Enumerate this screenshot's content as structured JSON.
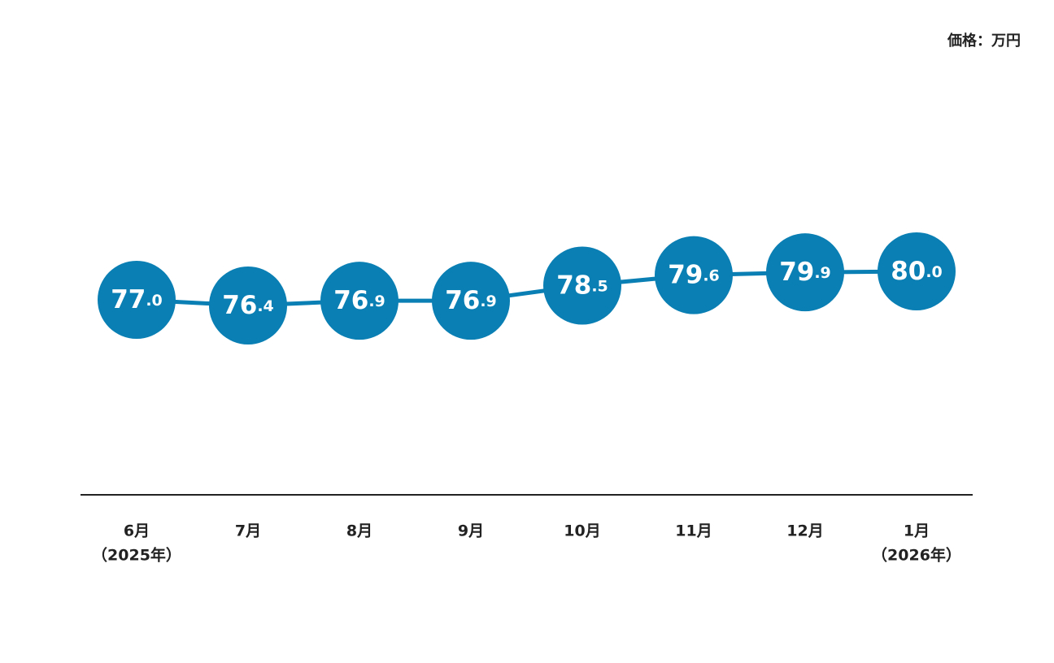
{
  "chart_data": {
    "type": "line",
    "unit_label": "価格：万円",
    "categories": [
      "6月",
      "7月",
      "8月",
      "9月",
      "10月",
      "11月",
      "12月",
      "1月"
    ],
    "year_labels": [
      "（2025年）",
      null,
      null,
      null,
      null,
      null,
      null,
      "（2026年）"
    ],
    "values": [
      77.0,
      76.4,
      76.9,
      76.9,
      78.5,
      79.6,
      79.9,
      80.0
    ],
    "value_labels": [
      "77.0",
      "76.4",
      "76.9",
      "76.9",
      "78.5",
      "79.6",
      "79.9",
      "80.0"
    ],
    "color": "#0a7fb3"
  }
}
